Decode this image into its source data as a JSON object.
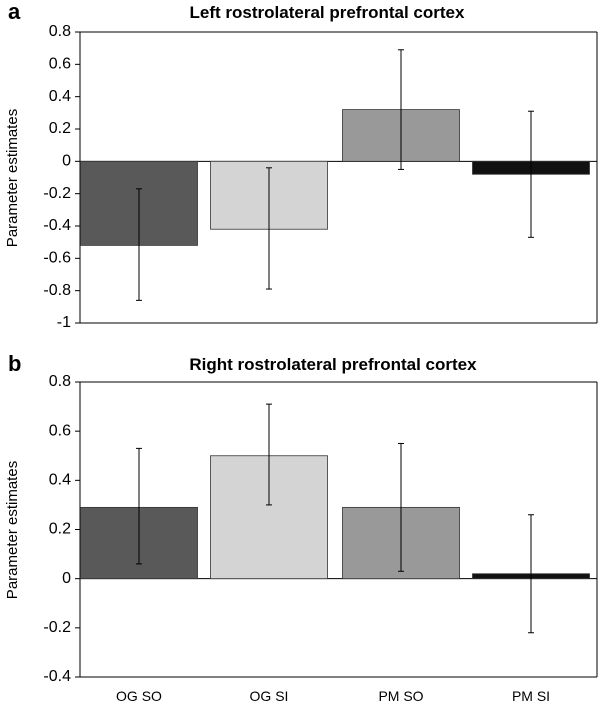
{
  "chart_data": [
    {
      "panel": "a",
      "type": "bar",
      "title": "Left rostrolateral prefrontal cortex",
      "ylabel": "Parameter estimates",
      "xlabel": "",
      "categories": [
        "OG SO",
        "OG SI",
        "PM SO",
        "PM SI"
      ],
      "values": [
        -0.52,
        -0.42,
        0.32,
        -0.08
      ],
      "error_low": [
        -0.86,
        -0.79,
        -0.05,
        -0.47
      ],
      "error_high": [
        -0.17,
        -0.04,
        0.69,
        0.31
      ],
      "bar_colors": [
        "#595959",
        "#d4d4d4",
        "#999999",
        "#111111"
      ],
      "ylim": [
        -1,
        0.8
      ],
      "yticks": [
        "0.8",
        "0.6",
        "0.4",
        "0.2",
        "0",
        "-0.2",
        "-0.4",
        "-0.6",
        "-0.8",
        "-1"
      ],
      "show_category_labels": false,
      "grid": false
    },
    {
      "panel": "b",
      "type": "bar",
      "title": "Right rostrolateral prefrontal cortex",
      "ylabel": "Parameter estimates",
      "xlabel": "",
      "categories": [
        "OG SO",
        "OG SI",
        "PM SO",
        "PM SI"
      ],
      "values": [
        0.29,
        0.5,
        0.29,
        0.02
      ],
      "error_low": [
        0.06,
        0.3,
        0.03,
        -0.22
      ],
      "error_high": [
        0.53,
        0.71,
        0.55,
        0.26
      ],
      "bar_colors": [
        "#595959",
        "#d4d4d4",
        "#999999",
        "#111111"
      ],
      "ylim": [
        -0.4,
        0.8
      ],
      "yticks": [
        "0.8",
        "0.6",
        "0.4",
        "0.2",
        "0",
        "-0.2",
        "-0.4"
      ],
      "show_category_labels": true,
      "grid": false
    }
  ]
}
